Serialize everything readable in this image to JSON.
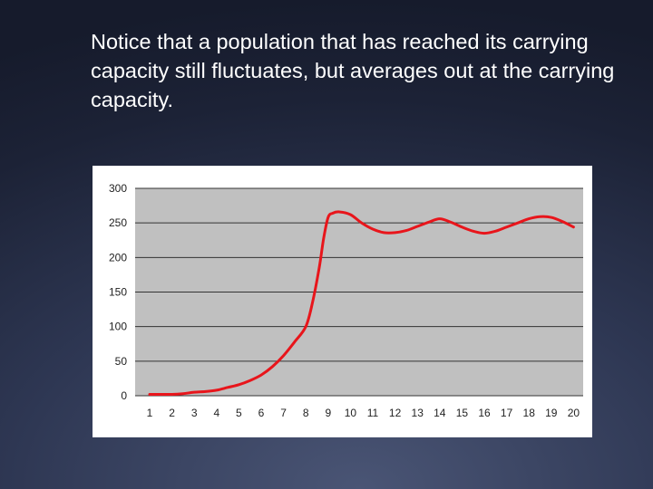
{
  "slide": {
    "text": "Notice that a population that has reached its carrying capacity still fluctuates, but averages out at the carrying capacity."
  },
  "colors": {
    "plot_background": "#c0c0c0",
    "gridline": "#333333",
    "series_line": "#e8151b"
  },
  "chart_data": {
    "type": "line",
    "title": "",
    "xlabel": "",
    "ylabel": "",
    "grid": true,
    "legend": "none",
    "ylim": [
      0,
      300
    ],
    "xlim": [
      1,
      20
    ],
    "y_ticks": [
      0,
      50,
      100,
      150,
      200,
      250,
      300
    ],
    "categories": [
      "1",
      "2",
      "3",
      "4",
      "5",
      "6",
      "7",
      "8",
      "9",
      "10",
      "11",
      "12",
      "13",
      "14",
      "15",
      "16",
      "17",
      "18",
      "19",
      "20"
    ],
    "series": [
      {
        "name": "Population",
        "x": [
          1,
          1.5,
          2,
          2.5,
          3,
          3.5,
          4,
          4.5,
          5,
          5.5,
          6,
          6.5,
          7,
          7.5,
          8,
          8.3,
          8.6,
          8.8,
          9,
          9.2,
          9.5,
          10,
          10.5,
          11,
          11.5,
          12,
          12.5,
          13,
          13.5,
          14,
          14.5,
          15,
          15.5,
          16,
          16.5,
          17,
          17.5,
          18,
          18.5,
          19,
          19.5,
          20
        ],
        "values": [
          2,
          2,
          2,
          3,
          5,
          6,
          8,
          12,
          16,
          22,
          30,
          42,
          58,
          78,
          100,
          135,
          185,
          228,
          258,
          264,
          266,
          262,
          250,
          241,
          236,
          236,
          239,
          245,
          251,
          256,
          251,
          244,
          238,
          235,
          238,
          244,
          250,
          256,
          259,
          258,
          252,
          244
        ]
      }
    ]
  }
}
